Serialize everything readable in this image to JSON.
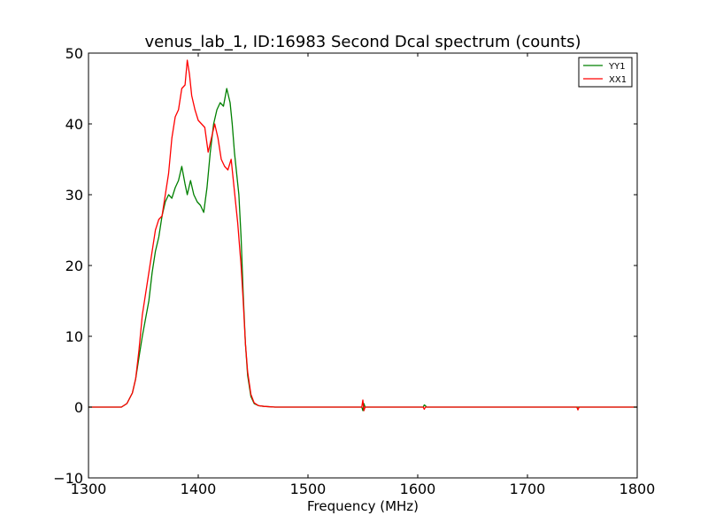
{
  "chart_data": {
    "type": "line",
    "title": "venus_lab_1, ID:16983 Second Dcal spectrum (counts)",
    "xlabel": "Frequency (MHz)",
    "ylabel": "",
    "xlim": [
      1300,
      1800
    ],
    "ylim": [
      -10,
      50
    ],
    "xticks": [
      1300,
      1400,
      1500,
      1600,
      1700,
      1800
    ],
    "yticks": [
      -10,
      0,
      10,
      20,
      30,
      40,
      50
    ],
    "xtick_labels": [
      "1300",
      "1400",
      "1500",
      "1600",
      "1700",
      "1800"
    ],
    "ytick_labels": [
      "−10",
      "0",
      "10",
      "20",
      "30",
      "40",
      "50"
    ],
    "grid": false,
    "legend_position": "top-right",
    "series": [
      {
        "name": "YY1",
        "color": "#008000",
        "x": [
          1300,
          1330,
          1335,
          1340,
          1343,
          1346,
          1349,
          1352,
          1355,
          1358,
          1361,
          1364,
          1367,
          1370,
          1373,
          1376,
          1379,
          1382,
          1385,
          1388,
          1390,
          1393,
          1396,
          1399,
          1402,
          1405,
          1408,
          1411,
          1414,
          1417,
          1420,
          1423,
          1426,
          1429,
          1431,
          1433,
          1435,
          1437,
          1439,
          1441,
          1443,
          1445,
          1448,
          1451,
          1455,
          1460,
          1470,
          1500,
          1549,
          1550,
          1551,
          1552,
          1600,
          1605,
          1606,
          1607,
          1608,
          1610,
          1800
        ],
        "y": [
          0,
          0,
          0.5,
          2,
          4,
          7,
          10,
          12.5,
          15,
          19,
          22,
          24,
          27,
          29,
          30,
          29.5,
          31,
          32,
          34,
          31.5,
          30,
          32,
          30,
          29,
          28.5,
          27.5,
          31,
          36,
          40,
          42,
          43,
          42.5,
          45,
          43,
          40,
          36,
          33,
          30,
          24,
          16,
          9,
          4.5,
          1.5,
          0.5,
          0.2,
          0.1,
          0,
          0,
          0,
          -0.5,
          0.5,
          0,
          0,
          0,
          0.3,
          0.2,
          0,
          0,
          0
        ]
      },
      {
        "name": "XX1",
        "color": "#ff0000",
        "x": [
          1300,
          1330,
          1335,
          1340,
          1343,
          1346,
          1349,
          1352,
          1355,
          1358,
          1361,
          1364,
          1367,
          1370,
          1373,
          1376,
          1379,
          1382,
          1385,
          1388,
          1390,
          1392,
          1394,
          1397,
          1400,
          1403,
          1406,
          1409,
          1412,
          1415,
          1418,
          1421,
          1424,
          1427,
          1430,
          1433,
          1436,
          1439,
          1441,
          1443,
          1445,
          1448,
          1451,
          1455,
          1460,
          1470,
          1500,
          1549,
          1550,
          1551,
          1552,
          1605,
          1606,
          1607,
          1608,
          1745,
          1746,
          1747,
          1800
        ],
        "y": [
          0,
          0,
          0.5,
          2,
          4,
          8,
          13,
          16,
          19,
          22,
          25,
          26.5,
          27,
          30,
          33,
          38,
          41,
          42,
          45,
          45.5,
          49,
          47,
          44,
          42,
          40.5,
          40,
          39.5,
          36,
          38,
          40,
          38,
          35,
          34,
          33.5,
          35,
          30.5,
          26,
          20,
          15,
          9,
          5,
          1.8,
          0.6,
          0.2,
          0.1,
          0,
          0,
          0,
          1,
          -0.5,
          0,
          0,
          -0.3,
          0,
          0,
          0,
          -0.4,
          0,
          0
        ]
      }
    ]
  }
}
